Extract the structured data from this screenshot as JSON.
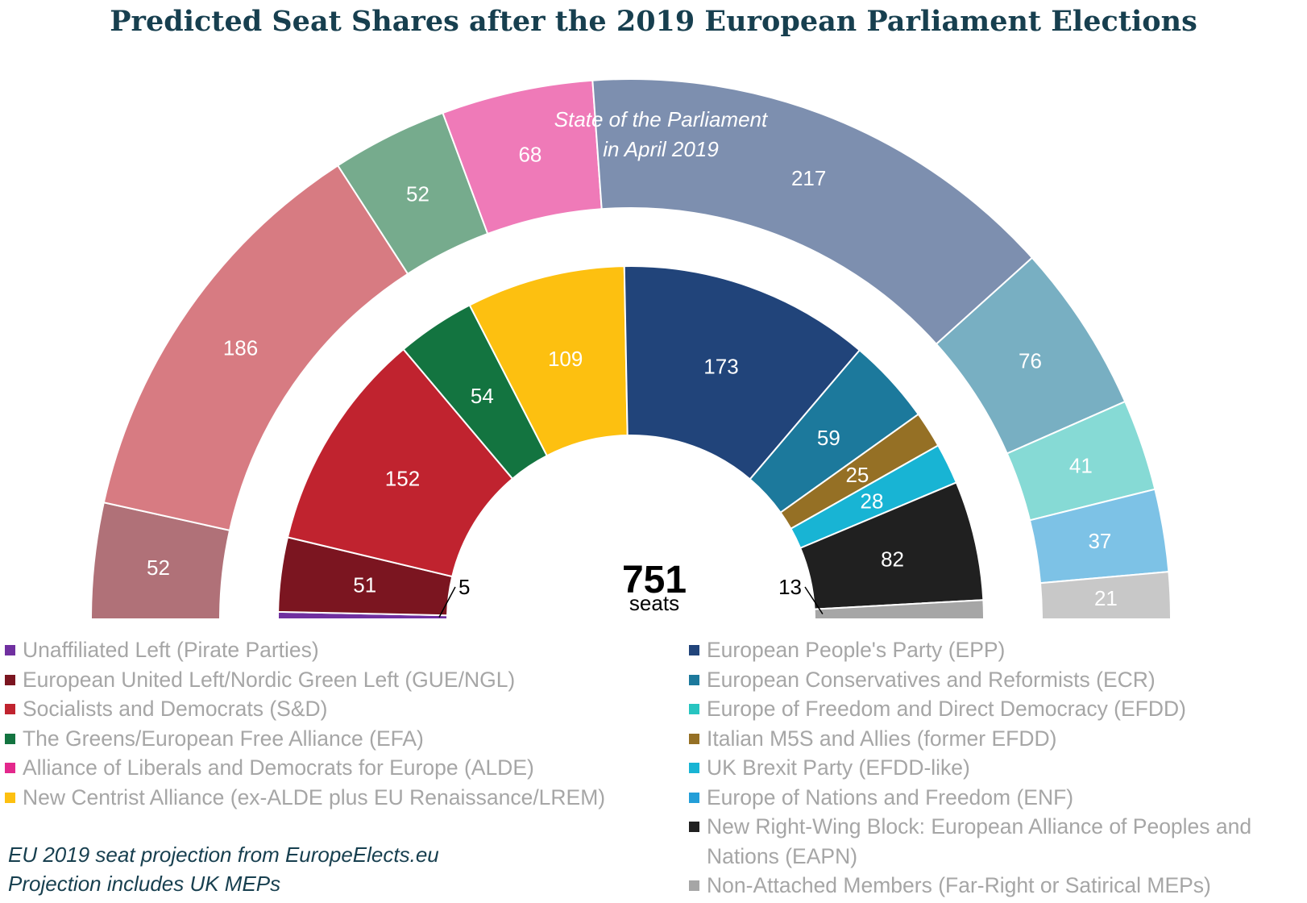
{
  "chart_data": {
    "type": "pie",
    "title": "Predicted Seat Shares after the 2019 European Parliament Elections",
    "total": "751",
    "total_unit": "seats",
    "outer_ring_note": [
      "State of the Parliament",
      "in April 2019"
    ],
    "outer_ring": [
      {
        "value": 52,
        "color": "#b07178"
      },
      {
        "value": 186,
        "color": "#d77b82"
      },
      {
        "value": 52,
        "color": "#76ab8d"
      },
      {
        "value": 68,
        "color": "#ef7ab8"
      },
      {
        "value": 217,
        "color": "#7d8faf"
      },
      {
        "value": 76,
        "color": "#78afc2"
      },
      {
        "value": 41,
        "color": "#86dad5"
      },
      {
        "value": 37,
        "color": "#7dc2e6"
      },
      {
        "value": 21,
        "color": "#c8c8c8"
      }
    ],
    "inner_ring": [
      {
        "value": 5,
        "color": "#7030a0",
        "label_outside": true
      },
      {
        "value": 51,
        "color": "#7b1520"
      },
      {
        "value": 152,
        "color": "#c0232f"
      },
      {
        "value": 54,
        "color": "#137440"
      },
      {
        "value": 109,
        "color": "#fdc010"
      },
      {
        "value": 173,
        "color": "#21447a"
      },
      {
        "value": 59,
        "color": "#1c799c"
      },
      {
        "value": 25,
        "color": "#957025"
      },
      {
        "value": 28,
        "color": "#18b4d4"
      },
      {
        "value": 82,
        "color": "#202020"
      },
      {
        "value": 13,
        "color": "#a6a6a6",
        "label_outside": true
      }
    ],
    "legend": [
      {
        "label": "Unaffiliated Left (Pirate Parties)",
        "color": "#7030a0"
      },
      {
        "label": "European United Left/Nordic Green Left (GUE/NGL)",
        "color": "#7b1520"
      },
      {
        "label": "Socialists and Democrats (S&D)",
        "color": "#c0232f"
      },
      {
        "label": "The Greens/European Free Alliance (EFA)",
        "color": "#137440"
      },
      {
        "label": "Alliance of Liberals and Democrats for Europe (ALDE)",
        "color": "#e3288c"
      },
      {
        "label": "New Centrist Alliance (ex-ALDE plus EU Renaissance/LREM)",
        "color": "#fdc010"
      },
      {
        "label": "European People's Party (EPP)",
        "color": "#21447a"
      },
      {
        "label": "European Conservatives and Reformists (ECR)",
        "color": "#1c799c"
      },
      {
        "label": "Europe of Freedom and Direct Democracy (EFDD)",
        "color": "#27c4c0"
      },
      {
        "label": "Italian M5S and Allies (former EFDD)",
        "color": "#957025"
      },
      {
        "label": "UK Brexit Party (EFDD-like)",
        "color": "#18b4d4"
      },
      {
        "label": "Europe of Nations and Freedom (ENF)",
        "color": "#239ed8"
      },
      {
        "label": "New Right-Wing Block: European Alliance of Peoples and Nations (EAPN)",
        "color": "#202020"
      },
      {
        "label": "Non-Attached Members (Far-Right or Satirical MEPs)",
        "color": "#a6a6a6"
      }
    ],
    "legend_placement": "bottom",
    "source_lines": [
      "EU 2019 seat projection from EuropeElects.eu",
      "Projection includes UK MEPs"
    ]
  }
}
